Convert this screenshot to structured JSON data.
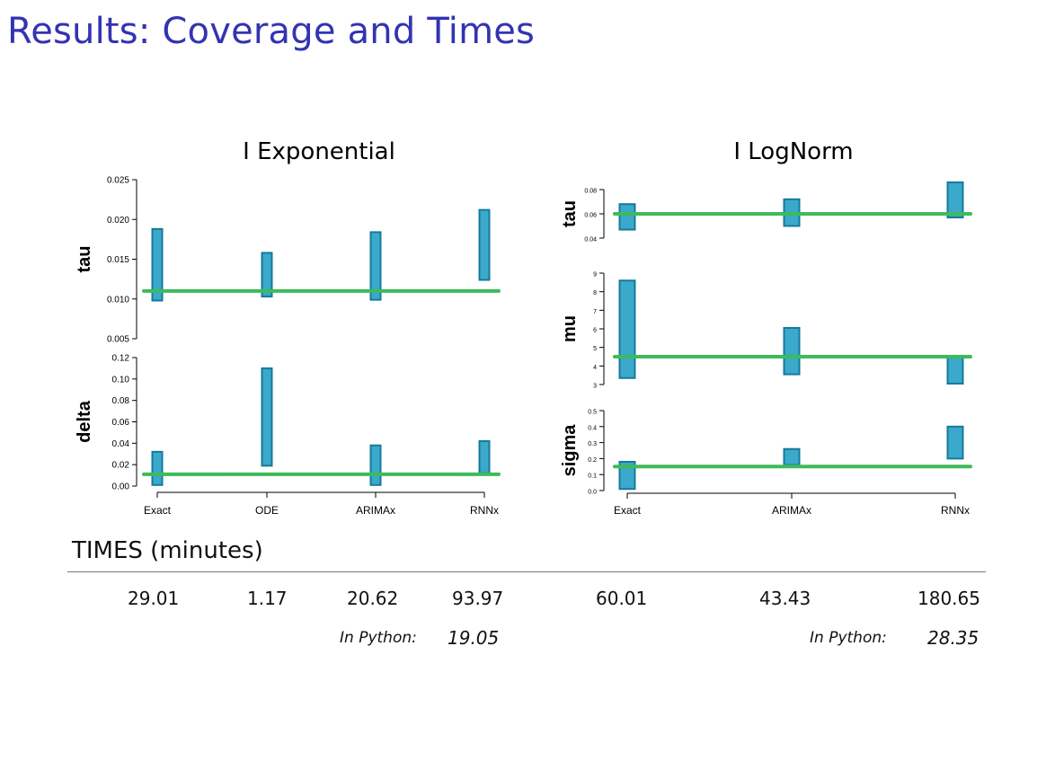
{
  "slide": {
    "title": "Results: Coverage and Times"
  },
  "chart_data": [
    {
      "type": "interval",
      "title": "I Exponential",
      "categories": [
        "Exact",
        "ODE",
        "ARIMAx",
        "RNNx"
      ],
      "panels": [
        {
          "ylabel": "tau",
          "ylim": [
            0.005,
            0.025
          ],
          "yticks": [
            "0.005",
            "0.010",
            "0.015",
            "0.020",
            "0.025"
          ],
          "truth": 0.011,
          "intervals": [
            [
              0.0098,
              0.0188
            ],
            [
              0.0103,
              0.0158
            ],
            [
              0.0099,
              0.0184
            ],
            [
              0.0124,
              0.0212
            ]
          ]
        },
        {
          "ylabel": "delta",
          "ylim": [
            0.0,
            0.12
          ],
          "yticks": [
            "0.00",
            "0.02",
            "0.04",
            "0.06",
            "0.08",
            "0.10",
            "0.12"
          ],
          "truth": 0.011,
          "intervals": [
            [
              0.001,
              0.032
            ],
            [
              0.019,
              0.11
            ],
            [
              0.001,
              0.038
            ],
            [
              0.012,
              0.042
            ]
          ]
        }
      ]
    },
    {
      "type": "interval",
      "title": "I LogNorm",
      "categories": [
        "Exact",
        "ARIMAx",
        "RNNx"
      ],
      "panels": [
        {
          "ylabel": "tau",
          "ylim": [
            0.04,
            0.08
          ],
          "yticks": [
            "0.04",
            "0.06",
            "0.08"
          ],
          "truth": 0.06,
          "intervals": [
            [
              0.047,
              0.068
            ],
            [
              0.05,
              0.072
            ],
            [
              0.057,
              0.086
            ]
          ]
        },
        {
          "ylabel": "mu",
          "ylim": [
            3,
            9
          ],
          "yticks": [
            "3",
            "4",
            "5",
            "6",
            "7",
            "8",
            "9"
          ],
          "truth": 4.5,
          "intervals": [
            [
              3.35,
              8.6
            ],
            [
              3.55,
              6.05
            ],
            [
              3.05,
              4.55
            ]
          ]
        },
        {
          "ylabel": "sigma",
          "ylim": [
            0.0,
            0.5
          ],
          "yticks": [
            "0.0",
            "0.1",
            "0.2",
            "0.3",
            "0.4",
            "0.5"
          ],
          "truth": 0.15,
          "intervals": [
            [
              0.01,
              0.18
            ],
            [
              0.16,
              0.26
            ],
            [
              0.2,
              0.4
            ]
          ]
        }
      ]
    }
  ],
  "times": {
    "title": "TIMES (minutes)",
    "values": [
      "29.01",
      "1.17",
      "20.62",
      "93.97",
      "60.01",
      "43.43",
      "180.65"
    ],
    "python": [
      {
        "label": "In Python:",
        "value": "19.05"
      },
      {
        "label": "In Python:",
        "value": "28.35"
      }
    ]
  },
  "colors": {
    "title": "#3333b3",
    "bar_fill": "#3aa9cc",
    "bar_stroke": "#157a9c",
    "truth_line": "#3dbb5a"
  }
}
